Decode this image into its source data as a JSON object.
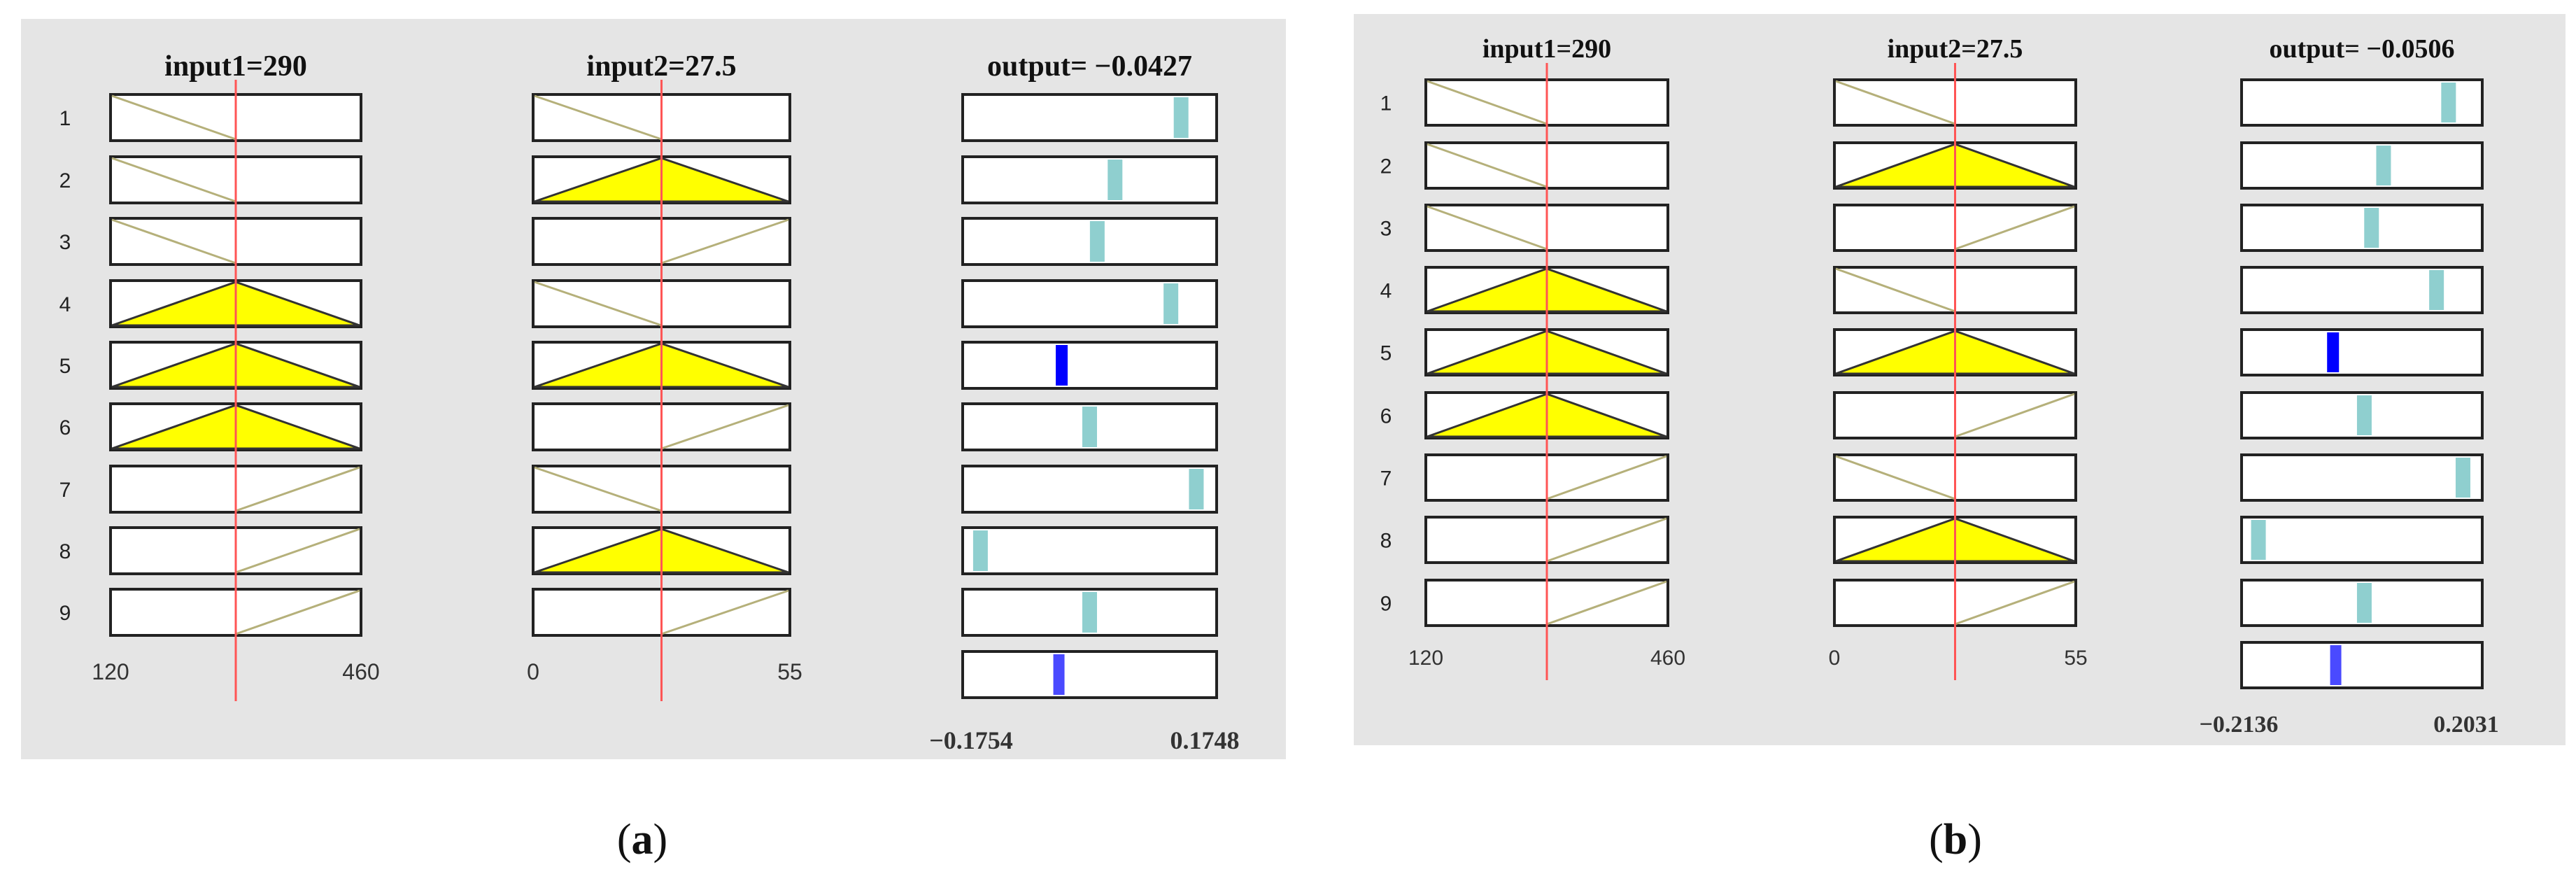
{
  "figure": {
    "panels": [
      {
        "caption_open": "(",
        "caption_letter": "a",
        "caption_close": ")",
        "input1": {
          "title": "input1=290",
          "min": 120,
          "max": 460,
          "value": 290,
          "min_label": "120",
          "max_label": "460"
        },
        "input2": {
          "title": "input2=27.5",
          "min": 0,
          "max": 55,
          "value": 27.5,
          "min_label": "0",
          "max_label": "55"
        },
        "output": {
          "title": "output= −0.0427",
          "min": -0.1754,
          "max": 0.1748,
          "min_label": "−0.1754",
          "max_label": "0.1748",
          "result": -0.0427
        },
        "rules": [
          {
            "label": "1",
            "in1": "falling",
            "in1_fired": false,
            "in2": "falling",
            "in2_fired": false,
            "out_pos": 0.86,
            "out_active": false
          },
          {
            "label": "2",
            "in1": "falling",
            "in1_fired": false,
            "in2": "triangle",
            "in2_fired": true,
            "out_pos": 0.6,
            "out_active": false
          },
          {
            "label": "3",
            "in1": "falling",
            "in1_fired": false,
            "in2": "rising",
            "in2_fired": false,
            "out_pos": 0.53,
            "out_active": false
          },
          {
            "label": "4",
            "in1": "triangle",
            "in1_fired": true,
            "in2": "falling",
            "in2_fired": false,
            "out_pos": 0.82,
            "out_active": false
          },
          {
            "label": "5",
            "in1": "triangle",
            "in1_fired": true,
            "in2": "triangle",
            "in2_fired": true,
            "out_pos": 0.39,
            "out_active": true
          },
          {
            "label": "6",
            "in1": "triangle",
            "in1_fired": true,
            "in2": "rising",
            "in2_fired": false,
            "out_pos": 0.5,
            "out_active": false
          },
          {
            "label": "7",
            "in1": "rising",
            "in1_fired": false,
            "in2": "falling",
            "in2_fired": false,
            "out_pos": 0.92,
            "out_active": false
          },
          {
            "label": "8",
            "in1": "rising",
            "in1_fired": false,
            "in2": "triangle",
            "in2_fired": true,
            "out_pos": 0.07,
            "out_active": false
          },
          {
            "label": "9",
            "in1": "rising",
            "in1_fired": false,
            "in2": "rising",
            "in2_fired": false,
            "out_pos": 0.5,
            "out_active": false
          }
        ]
      },
      {
        "caption_open": "(",
        "caption_letter": "b",
        "caption_close": ")",
        "input1": {
          "title": "input1=290",
          "min": 120,
          "max": 460,
          "value": 290,
          "min_label": "120",
          "max_label": "460"
        },
        "input2": {
          "title": "input2=27.5",
          "min": 0,
          "max": 55,
          "value": 27.5,
          "min_label": "0",
          "max_label": "55"
        },
        "output": {
          "title": "output= −0.0506",
          "min": -0.2136,
          "max": 0.2031,
          "min_label": "−0.2136",
          "max_label": "0.2031",
          "result": -0.0506
        },
        "rules": [
          {
            "label": "1",
            "in1": "falling",
            "in1_fired": false,
            "in2": "falling",
            "in2_fired": false,
            "out_pos": 0.86,
            "out_active": false
          },
          {
            "label": "2",
            "in1": "falling",
            "in1_fired": false,
            "in2": "triangle",
            "in2_fired": true,
            "out_pos": 0.59,
            "out_active": false
          },
          {
            "label": "3",
            "in1": "falling",
            "in1_fired": false,
            "in2": "rising",
            "in2_fired": false,
            "out_pos": 0.54,
            "out_active": false
          },
          {
            "label": "4",
            "in1": "triangle",
            "in1_fired": true,
            "in2": "falling",
            "in2_fired": false,
            "out_pos": 0.81,
            "out_active": false
          },
          {
            "label": "5",
            "in1": "triangle",
            "in1_fired": true,
            "in2": "triangle",
            "in2_fired": true,
            "out_pos": 0.38,
            "out_active": true
          },
          {
            "label": "6",
            "in1": "triangle",
            "in1_fired": true,
            "in2": "rising",
            "in2_fired": false,
            "out_pos": 0.51,
            "out_active": false
          },
          {
            "label": "7",
            "in1": "rising",
            "in1_fired": false,
            "in2": "falling",
            "in2_fired": false,
            "out_pos": 0.92,
            "out_active": false
          },
          {
            "label": "8",
            "in1": "rising",
            "in1_fired": false,
            "in2": "triangle",
            "in2_fired": true,
            "out_pos": 0.07,
            "out_active": false
          },
          {
            "label": "9",
            "in1": "rising",
            "in1_fired": false,
            "in2": "rising",
            "in2_fired": false,
            "out_pos": 0.51,
            "out_active": false
          }
        ]
      }
    ]
  },
  "colors": {
    "panel_bg": "#e5e5e5",
    "box_border": "#222222",
    "mf_line": "#b5b07a",
    "mf_fill": "#ffff00",
    "crosshair": "#ff5555",
    "out_bar": "#8fcfcf",
    "out_bar_active": "#0000ff",
    "out_result": "#4a4aff"
  }
}
